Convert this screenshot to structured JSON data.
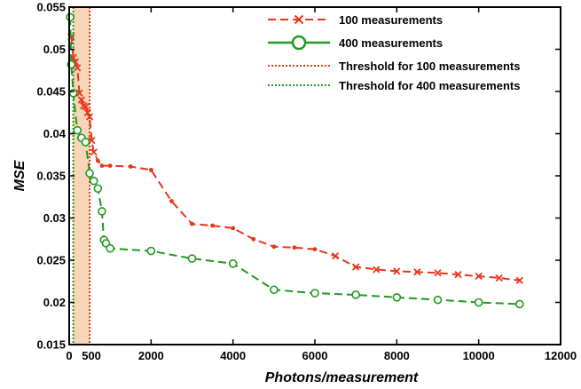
{
  "chart_data": {
    "type": "line",
    "xlabel": "Photons/measurement",
    "ylabel": "MSE",
    "xlim": [
      0,
      12000
    ],
    "ylim": [
      0.015,
      0.055
    ],
    "x_ticks": [
      0,
      2000,
      4000,
      6000,
      8000,
      10000,
      12000
    ],
    "x_tick_labels": [
      "0",
      "2000",
      "4000",
      "6000",
      "8000",
      "10000",
      "12000"
    ],
    "extra_x_tick": {
      "value": 500,
      "label": "500"
    },
    "y_ticks": [
      0.015,
      0.02,
      0.025,
      0.03,
      0.035,
      0.04,
      0.045,
      0.05,
      0.055
    ],
    "y_tick_labels": [
      "0.015",
      "0.02",
      "0.025",
      "0.03",
      "0.035",
      "0.04",
      "0.045",
      "0.05",
      "0.055"
    ],
    "grid": false,
    "legend_position": "top-right",
    "shaded_region": {
      "x_from": 100,
      "x_to": 500,
      "color": "#f7d6b8"
    },
    "series": [
      {
        "name": "100 measurements",
        "color": "#e8361b",
        "marker": "x",
        "x": [
          50,
          100,
          150,
          200,
          250,
          300,
          350,
          400,
          450,
          500,
          550,
          600,
          700,
          800,
          1000,
          1500,
          2000,
          2500,
          3000,
          3500,
          4000,
          4500,
          5000,
          5500,
          6000,
          6500,
          7000,
          7500,
          8000,
          8500,
          9000,
          9500,
          10000,
          10500,
          11000
        ],
        "y": [
          0.0515,
          0.049,
          0.0485,
          0.0478,
          0.0448,
          0.044,
          0.0433,
          0.0432,
          0.0425,
          0.042,
          0.0392,
          0.0378,
          0.0368,
          0.0362,
          0.0362,
          0.0361,
          0.0357,
          0.032,
          0.0293,
          0.0291,
          0.0288,
          0.0275,
          0.0266,
          0.0265,
          0.0263,
          0.0255,
          0.0242,
          0.0239,
          0.0237,
          0.0236,
          0.0235,
          0.0233,
          0.0231,
          0.0229,
          0.0226
        ]
      },
      {
        "name": "400 measurements",
        "color": "#1e9a1e",
        "marker": "o",
        "x": [
          25,
          50,
          100,
          200,
          300,
          400,
          500,
          600,
          700,
          800,
          850,
          900,
          1000,
          2000,
          3000,
          4000,
          5000,
          6000,
          7000,
          8000,
          9000,
          10000,
          11000
        ],
        "y": [
          0.0538,
          0.0482,
          0.0448,
          0.0404,
          0.0395,
          0.039,
          0.0353,
          0.0344,
          0.0335,
          0.0308,
          0.0274,
          0.027,
          0.0264,
          0.0261,
          0.0252,
          0.0246,
          0.0215,
          0.0211,
          0.0209,
          0.0206,
          0.0203,
          0.02,
          0.0198
        ]
      }
    ],
    "reference_lines": [
      {
        "name": "Threshold for 100 measurements",
        "x": 500,
        "color": "#e8361b",
        "style": "dotted"
      },
      {
        "name": "Threshold for 400 measurements",
        "x": 100,
        "color": "#1e9a1e",
        "style": "dotted"
      }
    ]
  }
}
